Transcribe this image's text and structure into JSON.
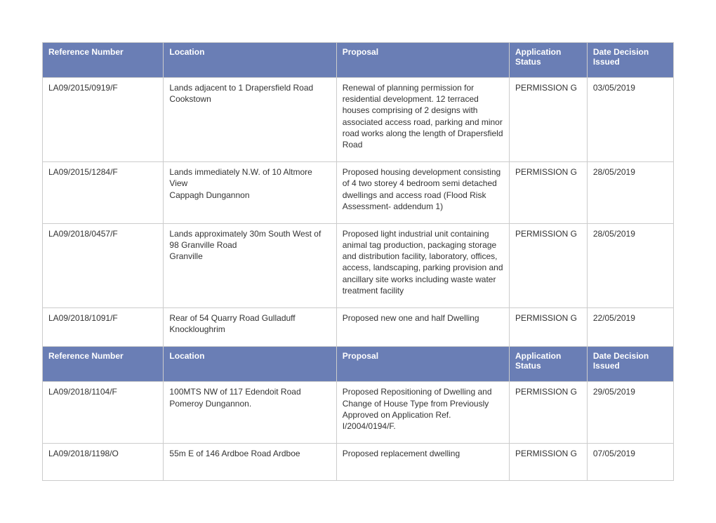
{
  "colors": {
    "header_bg": "#6a7eb5",
    "header_text": "#ffffff",
    "border": "#cccccc",
    "body_text": "#333333",
    "page_bg": "#ffffff"
  },
  "columns": [
    {
      "key": "ref",
      "label": "Reference Number"
    },
    {
      "key": "location",
      "label": "Location"
    },
    {
      "key": "proposal",
      "label": "Proposal"
    },
    {
      "key": "status",
      "label": "Application Status"
    },
    {
      "key": "date",
      "label": "Date Decision Issued"
    }
  ],
  "rows": [
    {
      "ref": "LA09/2015/0919/F",
      "location": "Lands adjacent to 1 Drapersfield Road Cookstown",
      "proposal": "Renewal of planning permission for residential development. 12 terraced houses comprising of 2 designs with associated access road, parking and minor road works along the length of Drapersfield Road",
      "status": "PERMISSION G",
      "date": "03/05/2019"
    },
    {
      "ref": "LA09/2015/1284/F",
      "location": "Lands immediately N.W. of 10 Altmore View\nCappagh Dungannon",
      "proposal": "Proposed housing development consisting of 4 two storey 4 bedroom semi detached dwellings and access road (Flood Risk Assessment- addendum 1)",
      "status": "PERMISSION G",
      "date": "28/05/2019"
    },
    {
      "ref": "LA09/2018/0457/F",
      "location": "Lands approximately 30m South West of 98 Granville Road\nGranville",
      "proposal": "Proposed light industrial unit containing animal tag production, packaging storage and distribution facility, laboratory, offices, access, landscaping, parking provision and ancillary site works including waste water treatment facility",
      "status": "PERMISSION G",
      "date": "28/05/2019"
    },
    {
      "ref": "LA09/2018/1091/F",
      "location": "Rear of 54 Quarry Road Gulladuff Knockloughrim",
      "proposal": "Proposed new one and half Dwelling",
      "status": "PERMISSION G",
      "date": "22/05/2019"
    }
  ],
  "rows2": [
    {
      "ref": "LA09/2018/1104/F",
      "location": "100MTS NW of 117 Edendoit Road Pomeroy Dungannon.",
      "proposal": "Proposed Repositioning of Dwelling and Change of House Type from Previously Approved on Application Ref. I/2004/0194/F.",
      "status": "PERMISSION G",
      "date": "29/05/2019"
    },
    {
      "ref": "LA09/2018/1198/O",
      "location": "55m E of 146 Ardboe Road Ardboe",
      "proposal": "Proposed replacement dwelling",
      "status": "PERMISSION G",
      "date": "07/05/2019"
    }
  ]
}
